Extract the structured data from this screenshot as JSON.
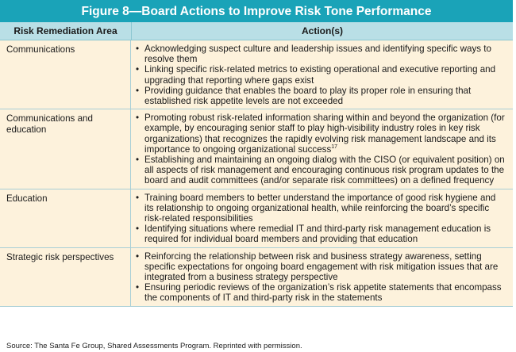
{
  "title": "Figure 8—Board Actions to Improve Risk Tone Performance",
  "headers": {
    "area": "Risk Remediation Area",
    "actions": "Action(s)"
  },
  "rows": [
    {
      "area": "Communications",
      "actions": [
        {
          "text": "Acknowledging suspect culture and leadership issues and identifying specific ways to resolve them"
        },
        {
          "text": "Linking specific risk-related metrics to existing operational and executive reporting and upgrading that reporting where gaps exist"
        },
        {
          "text": "Providing guidance that enables the board to play its proper role in ensuring that established risk appetite levels are not exceeded"
        }
      ]
    },
    {
      "area": "Communications and education",
      "actions": [
        {
          "text": "Promoting robust risk-related information sharing within and beyond the organization (for example, by encouraging senior staff to play high-visibility industry roles in key risk organizations) that recognizes the rapidly evolving risk management landscape and its importance to ongoing organizational success",
          "sup": "17"
        },
        {
          "text": "Establishing and maintaining an ongoing dialog with the CISO (or equivalent position) on all aspects of risk management and encouraging continuous risk program updates to the board and audit committees (and/or separate risk committees) on a defined frequency"
        }
      ]
    },
    {
      "area": "Education",
      "actions": [
        {
          "text": "Training board members to better understand the importance of good risk hygiene and its relationship to ongoing organizational health, while reinforcing the board’s specific risk-related responsibilities"
        },
        {
          "text": "Identifying situations where remedial IT and third-party risk management education is required for individual board members and providing that education"
        }
      ]
    },
    {
      "area": "Strategic risk perspectives",
      "actions": [
        {
          "text": "Reinforcing the relationship between risk and business strategy awareness, setting specific expectations for ongoing board engagement with risk mitigation issues that are integrated from a business strategy perspective"
        },
        {
          "text": "Ensuring periodic reviews of the organization’s risk appetite statements that encompass the components of IT and third-party risk in the statements"
        }
      ]
    }
  ],
  "source": "Source:  The Santa Fe Group, Shared Assessments Program. Reprinted with permission."
}
